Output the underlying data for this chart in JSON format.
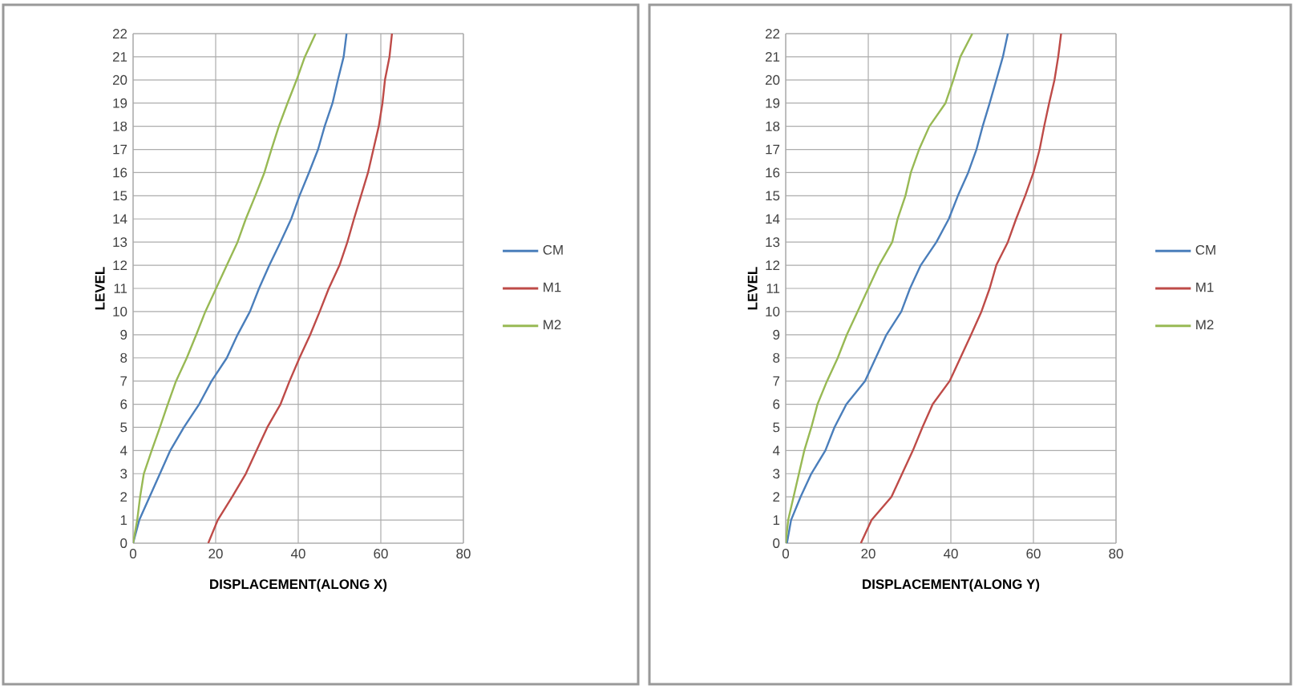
{
  "chart_data": [
    {
      "type": "line",
      "xlabel": "DISPLACEMENT(ALONG X)",
      "ylabel": "LEVEL",
      "xlim": [
        0,
        80
      ],
      "ylim": [
        0,
        22
      ],
      "xticks": [
        0,
        20,
        40,
        60,
        80
      ],
      "yticks": [
        0,
        1,
        2,
        3,
        4,
        5,
        6,
        7,
        8,
        9,
        10,
        11,
        12,
        13,
        14,
        15,
        16,
        17,
        18,
        19,
        20,
        21,
        22
      ],
      "grid": true,
      "legend": "right",
      "series": [
        {
          "name": "CM",
          "color": "#4a7ebb",
          "x": [
            0,
            1.5,
            4,
            6.5,
            9,
            12.3,
            16,
            19,
            22.7,
            25.3,
            28.3,
            30.5,
            33,
            35.7,
            38.3,
            40.3,
            42.6,
            44.8,
            46.4,
            48.3,
            49.6,
            51,
            51.7
          ],
          "values": [
            0,
            1,
            2,
            3,
            4,
            5,
            6,
            7,
            8,
            9,
            10,
            11,
            12,
            13,
            14,
            15,
            16,
            17,
            18,
            19,
            20,
            21,
            22
          ]
        },
        {
          "name": "M1",
          "color": "#be4b48",
          "x": [
            18.2,
            20.5,
            24,
            27.3,
            29.9,
            32.5,
            35.7,
            37.9,
            40.3,
            42.9,
            45.2,
            47.4,
            50,
            51.9,
            53.5,
            55.2,
            56.9,
            58.2,
            59.5,
            60.4,
            61,
            62.1,
            62.7
          ],
          "values": [
            0,
            1,
            2,
            3,
            4,
            5,
            6,
            7,
            8,
            9,
            10,
            11,
            12,
            13,
            14,
            15,
            16,
            17,
            18,
            19,
            20,
            21,
            22
          ]
        },
        {
          "name": "M2",
          "color": "#98b954",
          "x": [
            0,
            1,
            1.7,
            2.6,
            4.5,
            6.5,
            8.4,
            10.4,
            13,
            15.3,
            17.5,
            20.1,
            22.7,
            25.3,
            27.3,
            29.6,
            31.8,
            33.5,
            35.3,
            37.4,
            39.6,
            41.6,
            44.2
          ],
          "values": [
            0,
            1,
            2,
            3,
            4,
            5,
            6,
            7,
            8,
            9,
            10,
            11,
            12,
            13,
            14,
            15,
            16,
            17,
            18,
            19,
            20,
            21,
            22
          ]
        }
      ]
    },
    {
      "type": "line",
      "xlabel": "DISPLACEMENT(ALONG Y)",
      "ylabel": "LEVEL",
      "xlim": [
        0,
        80
      ],
      "ylim": [
        0,
        22
      ],
      "xticks": [
        0,
        20,
        40,
        60,
        80
      ],
      "yticks": [
        0,
        1,
        2,
        3,
        4,
        5,
        6,
        7,
        8,
        9,
        10,
        11,
        12,
        13,
        14,
        15,
        16,
        17,
        18,
        19,
        20,
        21,
        22
      ],
      "grid": true,
      "legend": "right",
      "series": [
        {
          "name": "CM",
          "color": "#4a7ebb",
          "x": [
            0.3,
            1.3,
            3.6,
            6.2,
            9.6,
            11.8,
            14.7,
            19.2,
            21.8,
            24.4,
            28,
            30.1,
            32.7,
            36.5,
            39.5,
            41.7,
            44.2,
            46.2,
            47.7,
            49.4,
            51,
            52.6,
            53.8
          ],
          "values": [
            0,
            1,
            2,
            3,
            4,
            5,
            6,
            7,
            8,
            9,
            10,
            11,
            12,
            13,
            14,
            15,
            16,
            17,
            18,
            19,
            20,
            21,
            22
          ]
        },
        {
          "name": "M1",
          "color": "#be4b48",
          "x": [
            18.2,
            20.8,
            25.6,
            28.2,
            30.8,
            33.1,
            35.6,
            39.7,
            42.3,
            44.9,
            47.4,
            49.4,
            51,
            53.8,
            55.8,
            58,
            60,
            61.5,
            62.6,
            63.8,
            65.1,
            66,
            66.7
          ],
          "values": [
            0,
            1,
            2,
            3,
            4,
            5,
            6,
            7,
            8,
            9,
            10,
            11,
            12,
            13,
            14,
            15,
            16,
            17,
            18,
            19,
            20,
            21,
            22
          ]
        },
        {
          "name": "M2",
          "color": "#98b954",
          "x": [
            0,
            0.6,
            1.9,
            3.2,
            4.5,
            6.2,
            7.7,
            10,
            12.6,
            14.8,
            17.4,
            20,
            22.6,
            25.8,
            27.1,
            29,
            30.3,
            32.3,
            34.8,
            38.7,
            40.6,
            42.3,
            45.2
          ],
          "values": [
            0,
            1,
            2,
            3,
            4,
            5,
            6,
            7,
            8,
            9,
            10,
            11,
            12,
            13,
            14,
            15,
            16,
            17,
            18,
            19,
            20,
            21,
            22
          ]
        }
      ]
    }
  ]
}
